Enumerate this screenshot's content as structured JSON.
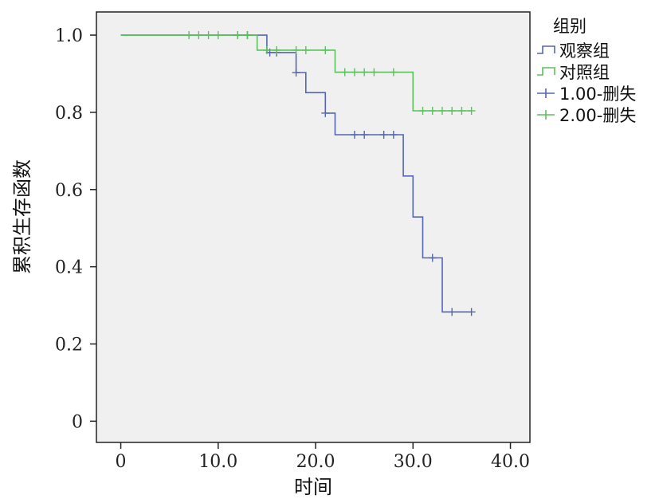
{
  "chart_data": {
    "type": "line",
    "title": "",
    "xlabel": "时间",
    "ylabel": "累积生存函数",
    "xlim": [
      -2.5,
      42
    ],
    "ylim": [
      -0.055,
      1.06
    ],
    "x_ticks": [
      {
        "value": 0,
        "label": "0"
      },
      {
        "value": 10,
        "label": "10.0"
      },
      {
        "value": 20,
        "label": "20.0"
      },
      {
        "value": 30,
        "label": "30.0"
      },
      {
        "value": 40,
        "label": "40.0"
      }
    ],
    "y_ticks": [
      {
        "value": 0,
        "label": "0"
      },
      {
        "value": 0.2,
        "label": "0.2"
      },
      {
        "value": 0.4,
        "label": "0.4"
      },
      {
        "value": 0.6,
        "label": "0.6"
      },
      {
        "value": 0.8,
        "label": "0.8"
      },
      {
        "value": 1.0,
        "label": "1.0"
      }
    ],
    "grid": false,
    "legend_title": "组别",
    "legend_placement": "right",
    "series": [
      {
        "name": "观察组",
        "color": "#5566b0",
        "step_points": [
          [
            0,
            1.0
          ],
          [
            15,
            1.0
          ],
          [
            15,
            0.955
          ],
          [
            18,
            0.955
          ],
          [
            18,
            0.903
          ],
          [
            19,
            0.903
          ],
          [
            19,
            0.851
          ],
          [
            21,
            0.851
          ],
          [
            21,
            0.798
          ],
          [
            22,
            0.798
          ],
          [
            22,
            0.742
          ],
          [
            29,
            0.742
          ],
          [
            29,
            0.635
          ],
          [
            30,
            0.635
          ],
          [
            30,
            0.529
          ],
          [
            31,
            0.529
          ],
          [
            31,
            0.423
          ],
          [
            33,
            0.423
          ],
          [
            33,
            0.283
          ],
          [
            36,
            0.283
          ]
        ]
      },
      {
        "name": "对照组",
        "color": "#5cc05c",
        "step_points": [
          [
            0,
            1.0
          ],
          [
            14,
            1.0
          ],
          [
            14,
            0.961
          ],
          [
            22,
            0.961
          ],
          [
            22,
            0.904
          ],
          [
            30,
            0.904
          ],
          [
            30,
            0.804
          ],
          [
            36,
            0.804
          ]
        ]
      }
    ],
    "censored": [
      {
        "name": "1.00-删失",
        "color": "#5566b0",
        "points": [
          [
            12,
            1.0
          ],
          [
            13,
            1.0
          ],
          [
            15.3,
            0.955
          ],
          [
            16,
            0.955
          ],
          [
            18,
            0.903
          ],
          [
            21,
            0.798
          ],
          [
            24,
            0.742
          ],
          [
            25,
            0.742
          ],
          [
            27,
            0.742
          ],
          [
            28,
            0.742
          ],
          [
            32,
            0.423
          ],
          [
            34,
            0.283
          ],
          [
            36,
            0.283
          ]
        ]
      },
      {
        "name": "2.00-删失",
        "color": "#5cc05c",
        "points": [
          [
            7,
            1.0
          ],
          [
            8,
            1.0
          ],
          [
            9,
            1.0
          ],
          [
            10,
            1.0
          ],
          [
            12,
            1.0
          ],
          [
            13,
            1.0
          ],
          [
            15,
            0.961
          ],
          [
            16,
            0.961
          ],
          [
            18,
            0.961
          ],
          [
            19,
            0.961
          ],
          [
            21,
            0.961
          ],
          [
            23,
            0.904
          ],
          [
            24,
            0.904
          ],
          [
            25,
            0.904
          ],
          [
            26,
            0.904
          ],
          [
            28,
            0.904
          ],
          [
            31,
            0.804
          ],
          [
            32,
            0.804
          ],
          [
            33,
            0.804
          ],
          [
            34,
            0.804
          ],
          [
            35,
            0.804
          ],
          [
            36,
            0.804
          ]
        ]
      }
    ],
    "legend": [
      {
        "label": "观察组",
        "kind": "step",
        "color": "#5566b0"
      },
      {
        "label": "对照组",
        "kind": "step",
        "color": "#5cc05c"
      },
      {
        "label": "1.00-删失",
        "kind": "censor",
        "color": "#5566b0"
      },
      {
        "label": "2.00-删失",
        "kind": "censor",
        "color": "#5cc05c"
      }
    ],
    "plot_background": "#f0f0f0"
  }
}
